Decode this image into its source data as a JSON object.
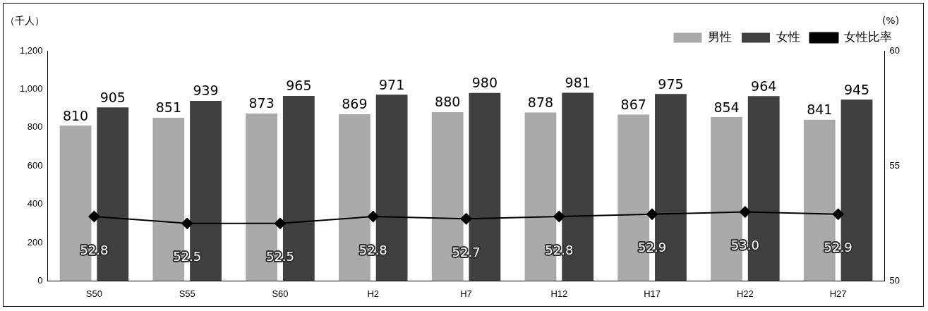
{
  "chart_data": {
    "type": "bar",
    "ylabel": "（千人）",
    "y2label": "(%)",
    "categories": [
      "S50",
      "S55",
      "S60",
      "H2",
      "H7",
      "H12",
      "H17",
      "H22",
      "H27"
    ],
    "series": [
      {
        "name": "男性",
        "color": "#aaaaaa",
        "values": [
          810,
          851,
          873,
          869,
          880,
          878,
          867,
          854,
          841
        ]
      },
      {
        "name": "女性",
        "color": "#404040",
        "values": [
          905,
          939,
          965,
          971,
          980,
          981,
          975,
          964,
          945
        ]
      },
      {
        "name": "女性比率",
        "type": "line",
        "axis": "y2",
        "color": "#000000",
        "values": [
          52.8,
          52.5,
          52.5,
          52.8,
          52.7,
          52.8,
          52.9,
          53.0,
          52.9
        ],
        "value_labels": [
          "52.8",
          "52.5",
          "52.5",
          "52.8",
          "52.7",
          "52.8",
          "52.9",
          "53.0",
          "52.9"
        ]
      }
    ],
    "ylim": [
      0,
      1200
    ],
    "yticks": [
      0,
      200,
      400,
      600,
      800,
      {
        "value": 1000,
        "label": "1,000"
      },
      {
        "value": 1200,
        "label": "1,200"
      }
    ],
    "y2lim": [
      50,
      60
    ],
    "y2ticks": [
      50,
      55,
      60
    ],
    "data_labels": true,
    "legend": "top right",
    "marker": "diamond",
    "grid": false
  }
}
